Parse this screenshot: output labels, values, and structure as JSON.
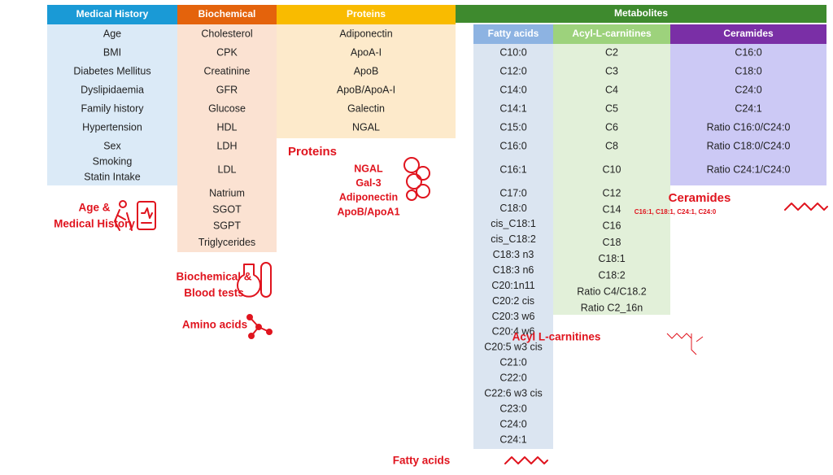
{
  "columns": [
    {
      "header": "Medical History",
      "items": [
        "Age",
        "BMI",
        "Diabetes Mellitus",
        "Dyslipidaemia",
        "Family history",
        "Hypertension",
        "Sex",
        "Smoking",
        "Statin Intake"
      ]
    },
    {
      "header": "Biochemical",
      "items": [
        "Cholesterol",
        "CPK",
        "Creatinine",
        "GFR",
        "Glucose",
        "HDL",
        "LDH",
        "LDL",
        "Natrium",
        "SGOT",
        "SGPT",
        "Triglycerides"
      ]
    },
    {
      "header": "Proteins",
      "items": [
        "Adiponectin",
        "ApoA-I",
        "ApoB",
        "ApoB/ApoA-I",
        "Galectin",
        "NGAL"
      ]
    }
  ],
  "metabolites": {
    "header": "Metabolites",
    "columns": [
      {
        "header": "Fatty acids",
        "items": [
          "C10:0",
          "C12:0",
          "C14:0",
          "C14:1",
          "C15:0",
          "C16:0",
          "C16:1",
          "C17:0",
          "C18:0",
          "cis_C18:1",
          "cis_C18:2",
          "C18:3 n3",
          "C18:3 n6",
          "C20:1n11",
          "C20:2 cis",
          "C20:3 w6",
          "C20:4 w6",
          "C20:5 w3 cis",
          "C21:0",
          "C22:0",
          "C22:6 w3 cis",
          "C23:0",
          "C24:0",
          "C24:1"
        ]
      },
      {
        "header": "Acyl-L-carnitines",
        "items": [
          "C2",
          "C3",
          "C4",
          "C5",
          "C6",
          "C8",
          "C10",
          "C12",
          "C14",
          "C16",
          "C18",
          "C18:1",
          "C18:2",
          "Ratio C4/C18.2",
          "Ratio C2_16n"
        ]
      },
      {
        "header": "Ceramides",
        "items": [
          "C16:0",
          "C18:0",
          "C24:0",
          "C24:1",
          "Ratio C16:0/C24:0",
          "Ratio C18:0/C24:0",
          "Ratio C24:1/C24:0"
        ]
      }
    ]
  },
  "labels": {
    "age_medical_history": [
      "Age &",
      "Medical History"
    ],
    "proteins": {
      "title": "Proteins",
      "items": [
        "NGAL",
        "Gal-3",
        "Adiponectin",
        "ApoB/ApoA1"
      ]
    },
    "biochemical_blood_tests": [
      "Biochemical &",
      "Blood tests"
    ],
    "amino_acids": "Amino acids",
    "ceramides": {
      "title": "Ceramides",
      "subtitle": "C16:1, C18:1, C24:1, C24:0"
    },
    "acyl_l_carnitines": "Acyl L-carnitines",
    "fatty_acids": "Fatty acids"
  }
}
